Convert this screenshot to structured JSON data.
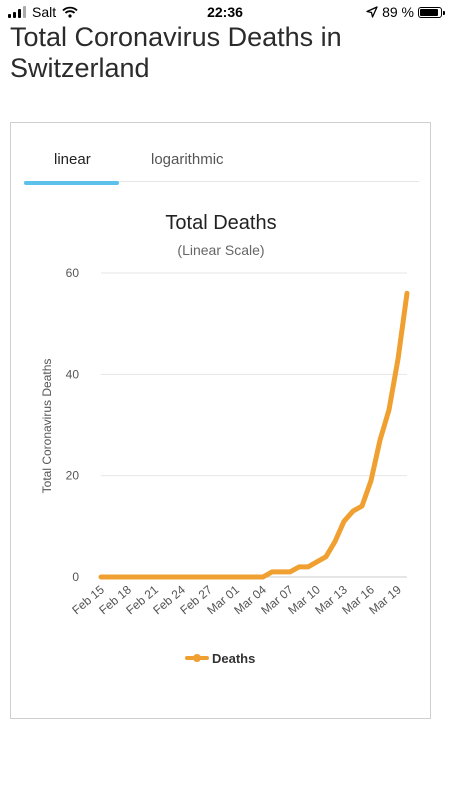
{
  "status_bar": {
    "carrier": "Salt",
    "time": "22:36",
    "battery": "89 %"
  },
  "page": {
    "title": "Total Coronavirus Deaths in Switzerland"
  },
  "tabs": [
    {
      "label": "linear",
      "active": true
    },
    {
      "label": "logarithmic",
      "active": false
    }
  ],
  "colors": {
    "accent_tab": "#5bc0eb",
    "series": "#f0a030"
  },
  "chart_data": {
    "type": "line",
    "title": "Total Deaths",
    "subtitle": "(Linear Scale)",
    "ylabel": "Total Coronavirus Deaths",
    "ylim": [
      0,
      60
    ],
    "yticks": [
      0,
      20,
      40,
      60
    ],
    "x_tick_labels": [
      "Feb 15",
      "Feb 18",
      "Feb 21",
      "Feb 24",
      "Feb 27",
      "Mar 01",
      "Mar 04",
      "Mar 07",
      "Mar 10",
      "Mar 13",
      "Mar 16",
      "Mar 19"
    ],
    "x": [
      "Feb 15",
      "Feb 16",
      "Feb 17",
      "Feb 18",
      "Feb 19",
      "Feb 20",
      "Feb 21",
      "Feb 22",
      "Feb 23",
      "Feb 24",
      "Feb 25",
      "Feb 26",
      "Feb 27",
      "Feb 28",
      "Feb 29",
      "Mar 01",
      "Mar 02",
      "Mar 03",
      "Mar 04",
      "Mar 05",
      "Mar 06",
      "Mar 07",
      "Mar 08",
      "Mar 09",
      "Mar 10",
      "Mar 11",
      "Mar 12",
      "Mar 13",
      "Mar 14",
      "Mar 15",
      "Mar 16",
      "Mar 17",
      "Mar 18",
      "Mar 19",
      "Mar 20"
    ],
    "series": [
      {
        "name": "Deaths",
        "values": [
          0,
          0,
          0,
          0,
          0,
          0,
          0,
          0,
          0,
          0,
          0,
          0,
          0,
          0,
          0,
          0,
          0,
          0,
          0,
          1,
          1,
          1,
          2,
          2,
          3,
          4,
          7,
          11,
          13,
          14,
          19,
          27,
          33,
          43,
          56
        ]
      }
    ],
    "grid": true,
    "legend": "bottom-center"
  }
}
